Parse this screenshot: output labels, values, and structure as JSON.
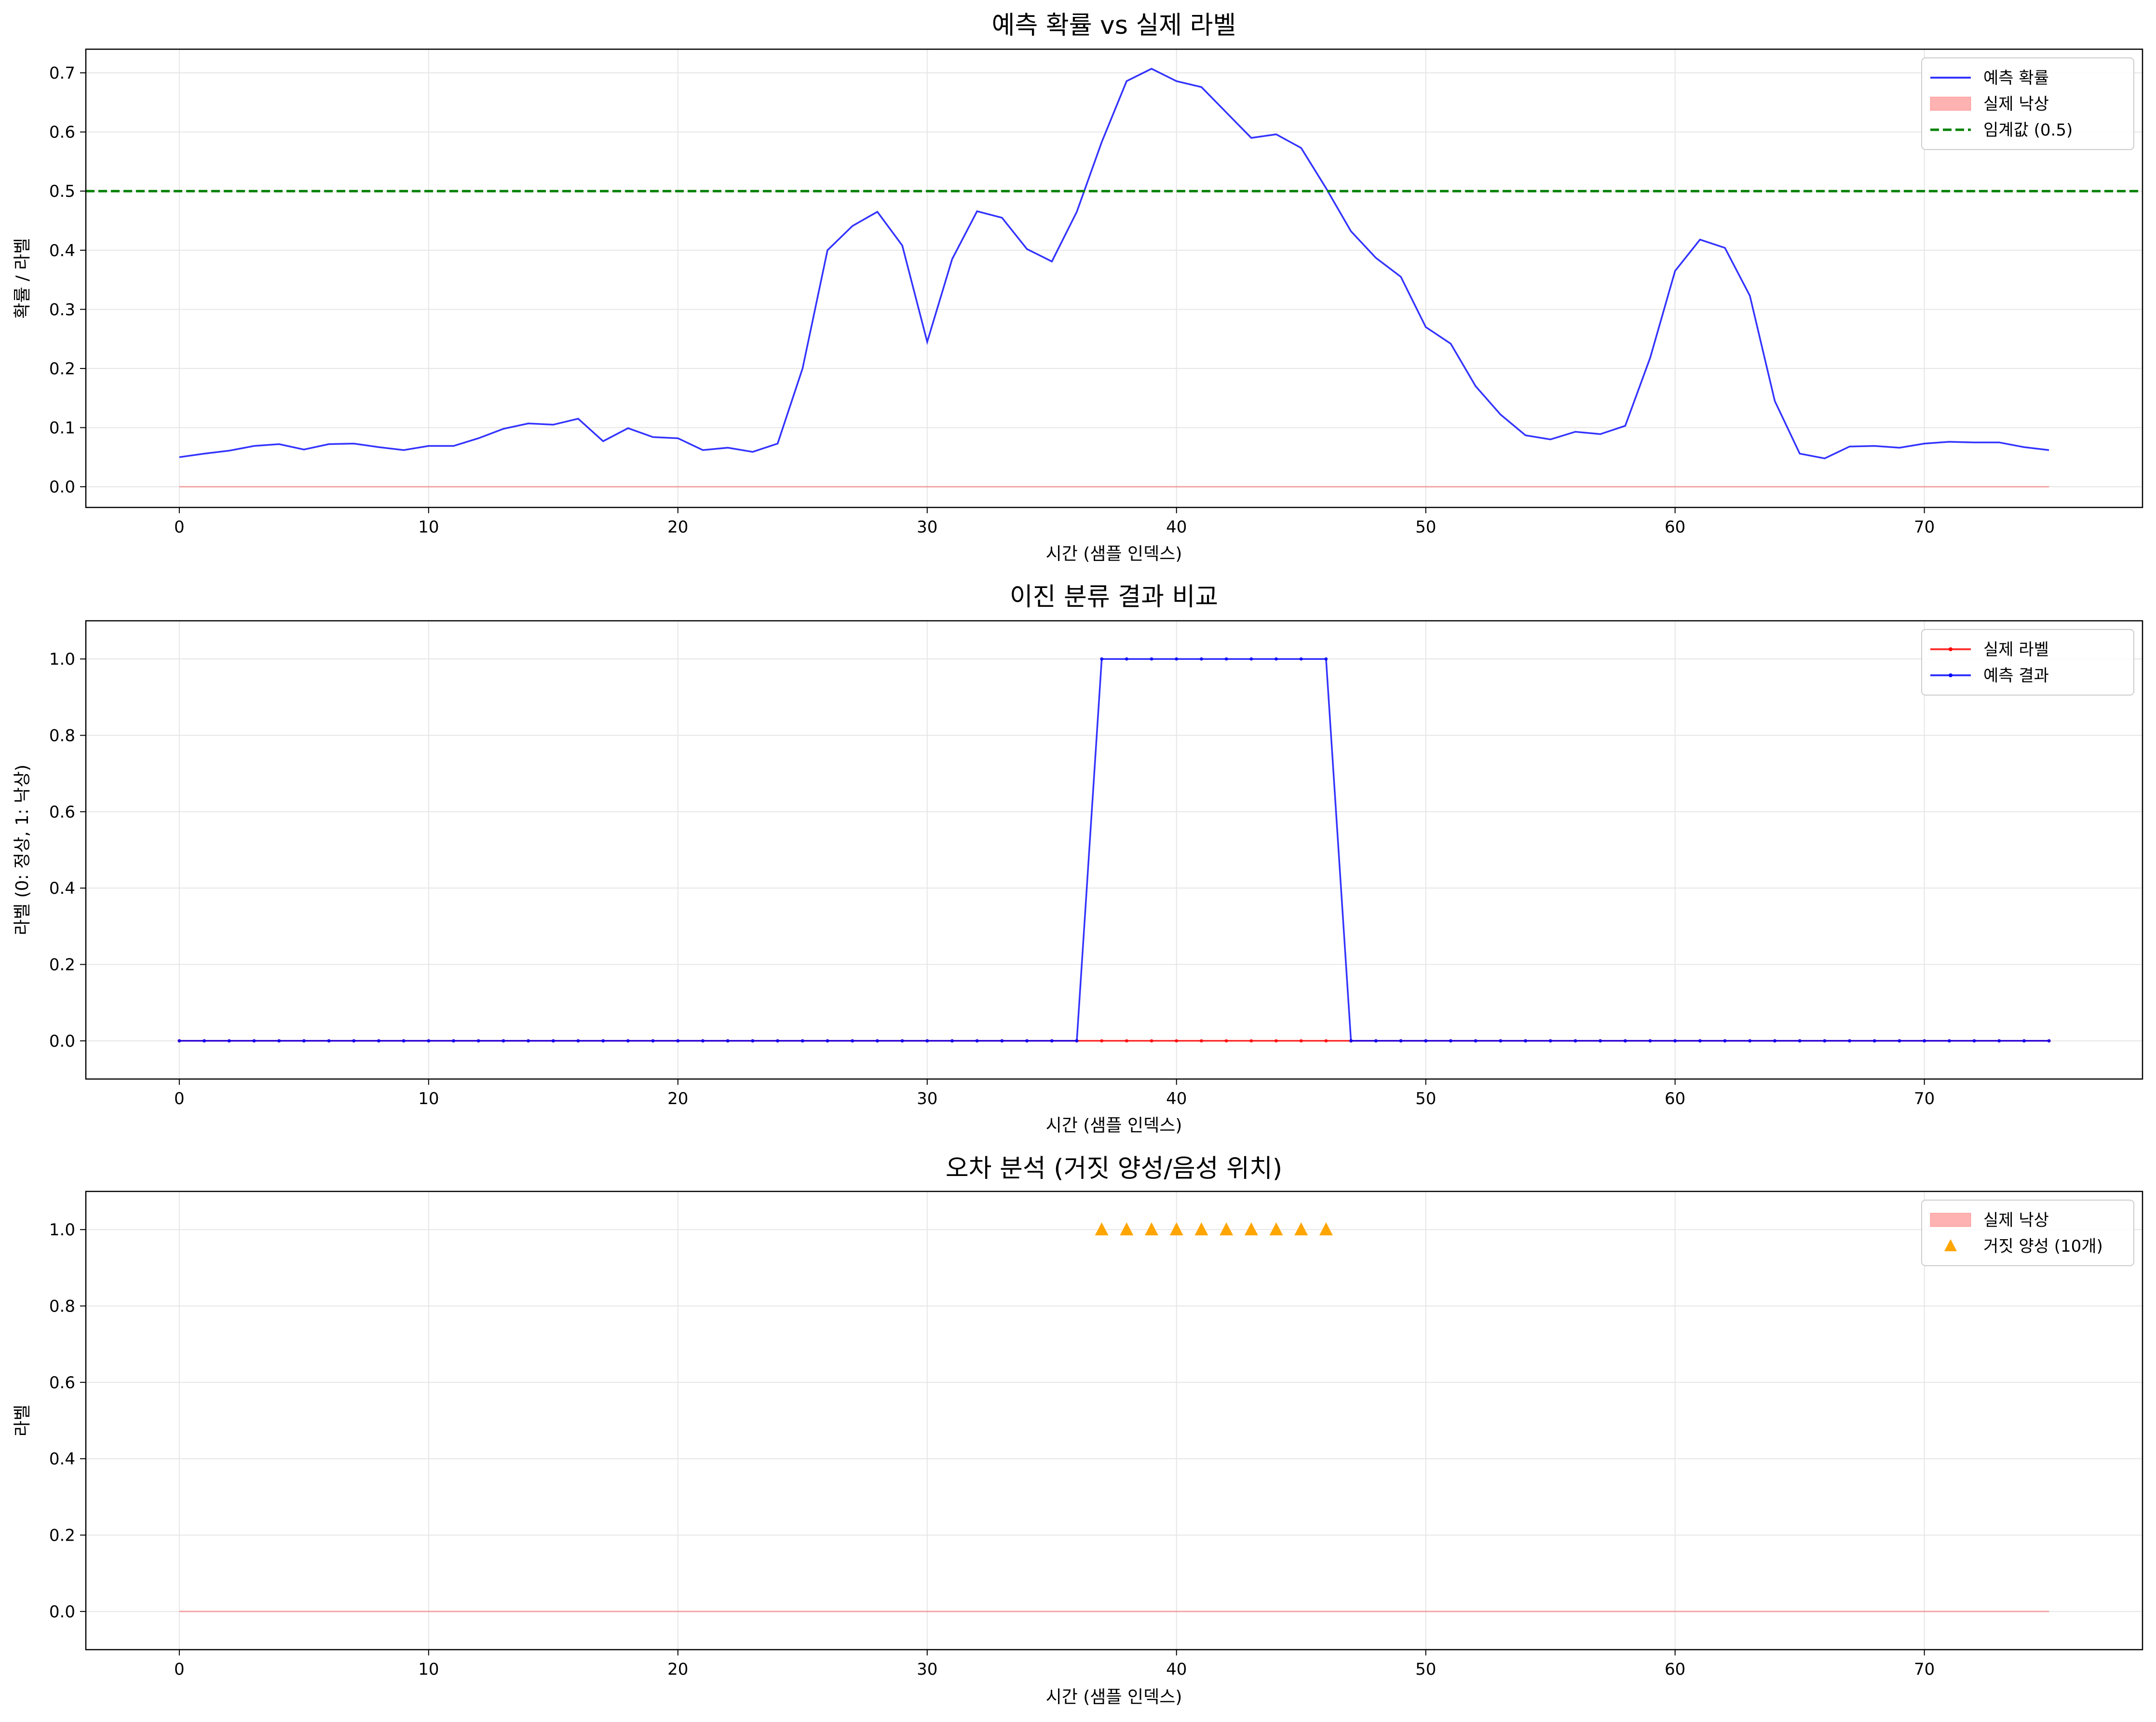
{
  "chart_data": [
    {
      "type": "line",
      "title": "예측 확률 vs 실제 라벨",
      "xlabel": "시간 (샘플 인덱스)",
      "ylabel": "확률 / 라벨",
      "xlim": [
        -3.75,
        78.75
      ],
      "ylim": [
        -0.035,
        0.74
      ],
      "xticks": [
        0,
        10,
        20,
        30,
        40,
        50,
        60,
        70
      ],
      "yticks": [
        0.0,
        0.1,
        0.2,
        0.3,
        0.4,
        0.5,
        0.6,
        0.7
      ],
      "ytick_labels": [
        "0.0",
        "0.1",
        "0.2",
        "0.3",
        "0.4",
        "0.5",
        "0.6",
        "0.7"
      ],
      "grid": true,
      "legend_position": "top-right",
      "series": [
        {
          "name": "예측 확률",
          "kind": "line",
          "color": "#0000ff",
          "x": [
            0,
            1,
            2,
            3,
            4,
            5,
            6,
            7,
            8,
            9,
            10,
            11,
            12,
            13,
            14,
            15,
            16,
            17,
            18,
            19,
            20,
            21,
            22,
            23,
            24,
            25,
            26,
            27,
            28,
            29,
            30,
            31,
            32,
            33,
            34,
            35,
            36,
            37,
            38,
            39,
            40,
            41,
            42,
            43,
            44,
            45,
            46,
            47,
            48,
            49,
            50,
            51,
            52,
            53,
            54,
            55,
            56,
            57,
            58,
            59,
            60,
            61,
            62,
            63,
            64,
            65,
            66,
            67,
            68,
            69,
            70,
            71,
            72,
            73,
            74,
            75
          ],
          "values": [
            0.05,
            0.056,
            0.061,
            0.069,
            0.072,
            0.063,
            0.072,
            0.073,
            0.067,
            0.062,
            0.069,
            0.069,
            0.082,
            0.098,
            0.107,
            0.105,
            0.115,
            0.077,
            0.099,
            0.084,
            0.082,
            0.062,
            0.066,
            0.059,
            0.073,
            0.2,
            0.4,
            0.441,
            0.465,
            0.408,
            0.245,
            0.385,
            0.466,
            0.455,
            0.402,
            0.381,
            0.465,
            0.583,
            0.686,
            0.707,
            0.686,
            0.676,
            0.633,
            0.59,
            0.596,
            0.573,
            0.505,
            0.432,
            0.387,
            0.355,
            0.27,
            0.242,
            0.17,
            0.122,
            0.087,
            0.08,
            0.093,
            0.089,
            0.103,
            0.218,
            0.365,
            0.418,
            0.404,
            0.323,
            0.145,
            0.056,
            0.048,
            0.068,
            0.069,
            0.066,
            0.073,
            0.076,
            0.075,
            0.075,
            0.067,
            0.062
          ]
        },
        {
          "name": "실제 낙상",
          "kind": "fill",
          "color": "#ff0000",
          "x": [
            0,
            75
          ],
          "values": [
            0,
            0
          ]
        },
        {
          "name": "임계값 (0.5)",
          "kind": "hline",
          "color": "#008000",
          "value": 0.5
        }
      ]
    },
    {
      "type": "line",
      "title": "이진 분류 결과 비교",
      "xlabel": "시간 (샘플 인덱스)",
      "ylabel": "라벨 (0: 정상, 1: 낙상)",
      "xlim": [
        -3.75,
        78.75
      ],
      "ylim": [
        -0.1,
        1.1
      ],
      "xticks": [
        0,
        10,
        20,
        30,
        40,
        50,
        60,
        70
      ],
      "yticks": [
        0.0,
        0.2,
        0.4,
        0.6,
        0.8,
        1.0
      ],
      "ytick_labels": [
        "0.0",
        "0.2",
        "0.4",
        "0.6",
        "0.8",
        "1.0"
      ],
      "grid": true,
      "legend_position": "top-right",
      "series": [
        {
          "name": "실제 라벨",
          "kind": "line-markers",
          "color": "#ff0000",
          "x": [
            0,
            1,
            2,
            3,
            4,
            5,
            6,
            7,
            8,
            9,
            10,
            11,
            12,
            13,
            14,
            15,
            16,
            17,
            18,
            19,
            20,
            21,
            22,
            23,
            24,
            25,
            26,
            27,
            28,
            29,
            30,
            31,
            32,
            33,
            34,
            35,
            36,
            37,
            38,
            39,
            40,
            41,
            42,
            43,
            44,
            45,
            46,
            47,
            48,
            49,
            50,
            51,
            52,
            53,
            54,
            55,
            56,
            57,
            58,
            59,
            60,
            61,
            62,
            63,
            64,
            65,
            66,
            67,
            68,
            69,
            70,
            71,
            72,
            73,
            74,
            75
          ],
          "values": [
            0,
            0,
            0,
            0,
            0,
            0,
            0,
            0,
            0,
            0,
            0,
            0,
            0,
            0,
            0,
            0,
            0,
            0,
            0,
            0,
            0,
            0,
            0,
            0,
            0,
            0,
            0,
            0,
            0,
            0,
            0,
            0,
            0,
            0,
            0,
            0,
            0,
            0,
            0,
            0,
            0,
            0,
            0,
            0,
            0,
            0,
            0,
            0,
            0,
            0,
            0,
            0,
            0,
            0,
            0,
            0,
            0,
            0,
            0,
            0,
            0,
            0,
            0,
            0,
            0,
            0,
            0,
            0,
            0,
            0,
            0,
            0,
            0,
            0,
            0,
            0
          ]
        },
        {
          "name": "예측 결과",
          "kind": "line-markers",
          "color": "#0000ff",
          "x": [
            0,
            1,
            2,
            3,
            4,
            5,
            6,
            7,
            8,
            9,
            10,
            11,
            12,
            13,
            14,
            15,
            16,
            17,
            18,
            19,
            20,
            21,
            22,
            23,
            24,
            25,
            26,
            27,
            28,
            29,
            30,
            31,
            32,
            33,
            34,
            35,
            36,
            37,
            38,
            39,
            40,
            41,
            42,
            43,
            44,
            45,
            46,
            47,
            48,
            49,
            50,
            51,
            52,
            53,
            54,
            55,
            56,
            57,
            58,
            59,
            60,
            61,
            62,
            63,
            64,
            65,
            66,
            67,
            68,
            69,
            70,
            71,
            72,
            73,
            74,
            75
          ],
          "values": [
            0,
            0,
            0,
            0,
            0,
            0,
            0,
            0,
            0,
            0,
            0,
            0,
            0,
            0,
            0,
            0,
            0,
            0,
            0,
            0,
            0,
            0,
            0,
            0,
            0,
            0,
            0,
            0,
            0,
            0,
            0,
            0,
            0,
            0,
            0,
            0,
            0,
            1,
            1,
            1,
            1,
            1,
            1,
            1,
            1,
            1,
            1,
            0,
            0,
            0,
            0,
            0,
            0,
            0,
            0,
            0,
            0,
            0,
            0,
            0,
            0,
            0,
            0,
            0,
            0,
            0,
            0,
            0,
            0,
            0,
            0,
            0,
            0,
            0,
            0,
            0
          ]
        }
      ]
    },
    {
      "type": "scatter",
      "title": "오차 분석 (거짓 양성/음성 위치)",
      "xlabel": "시간 (샘플 인덱스)",
      "ylabel": "라벨",
      "xlim": [
        -3.75,
        78.75
      ],
      "ylim": [
        -0.1,
        1.1
      ],
      "xticks": [
        0,
        10,
        20,
        30,
        40,
        50,
        60,
        70
      ],
      "yticks": [
        0.0,
        0.2,
        0.4,
        0.6,
        0.8,
        1.0
      ],
      "ytick_labels": [
        "0.0",
        "0.2",
        "0.4",
        "0.6",
        "0.8",
        "1.0"
      ],
      "grid": true,
      "legend_position": "top-right",
      "series": [
        {
          "name": "실제 낙상",
          "kind": "fill",
          "color": "#ff0000",
          "x": [
            0,
            75
          ],
          "values": [
            0,
            0
          ]
        },
        {
          "name": "거짓 양성 (10개)",
          "kind": "triangles",
          "color": "#ffa500",
          "x": [
            37,
            38,
            39,
            40,
            41,
            42,
            43,
            44,
            45,
            46
          ],
          "values": [
            1,
            1,
            1,
            1,
            1,
            1,
            1,
            1,
            1,
            1
          ]
        }
      ]
    }
  ]
}
